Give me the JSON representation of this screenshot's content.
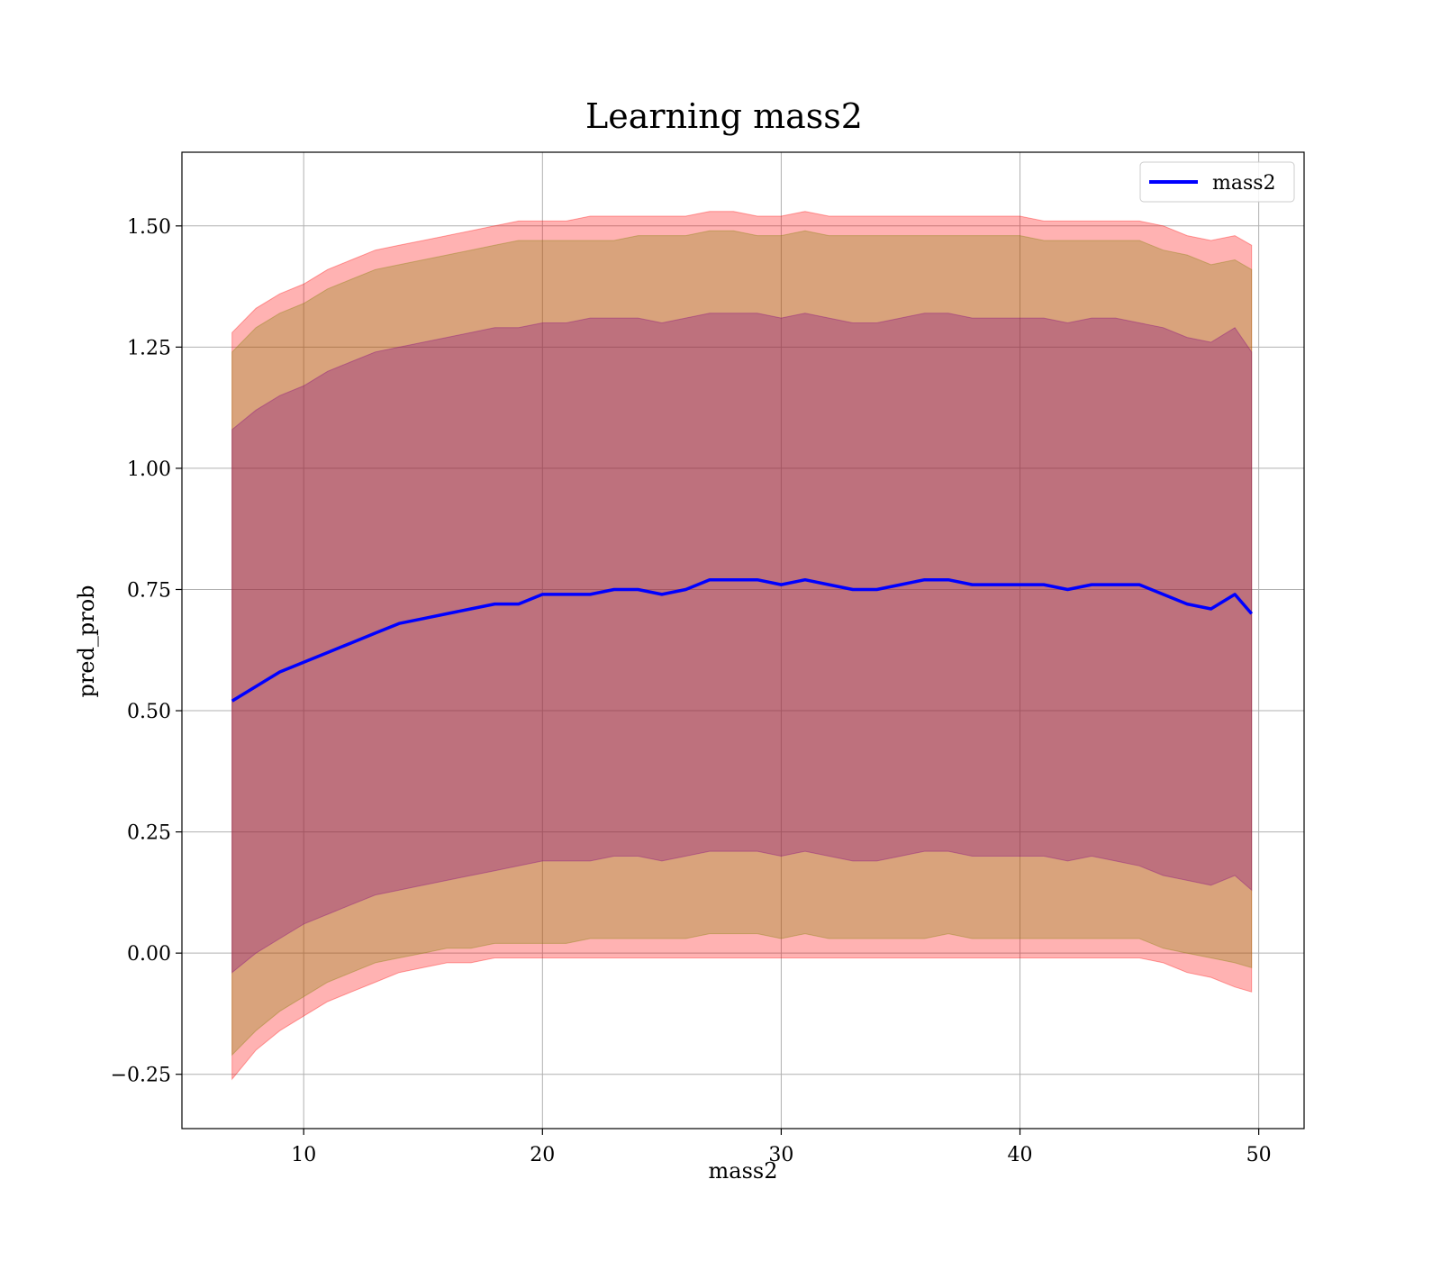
{
  "chart_data": {
    "type": "line",
    "title": "Learning mass2",
    "xlabel": "mass2",
    "ylabel": "pred_prob",
    "xlim": [
      4.9,
      51.9
    ],
    "ylim": [
      -0.362,
      1.652
    ],
    "x_ticks": [
      10,
      20,
      30,
      40,
      50
    ],
    "y_ticks": [
      -0.25,
      0.0,
      0.25,
      0.5,
      0.75,
      1.0,
      1.25,
      1.5
    ],
    "x_tick_labels": [
      "10",
      "20",
      "30",
      "40",
      "50"
    ],
    "y_tick_labels": [
      "−0.25",
      "0.00",
      "0.25",
      "0.50",
      "0.75",
      "1.00",
      "1.25",
      "1.50"
    ],
    "grid": true,
    "legend_position": "top-right",
    "x": [
      7,
      8,
      9,
      10,
      11,
      12,
      13,
      14,
      15,
      16,
      17,
      18,
      19,
      20,
      21,
      22,
      23,
      24,
      25,
      26,
      27,
      28,
      29,
      30,
      31,
      32,
      33,
      34,
      35,
      36,
      37,
      38,
      39,
      40,
      41,
      42,
      43,
      44,
      45,
      46,
      47,
      48,
      49,
      49.7
    ],
    "series": [
      {
        "name": "mass2",
        "color": "#0000ff",
        "values": [
          0.52,
          0.55,
          0.58,
          0.6,
          0.62,
          0.64,
          0.66,
          0.68,
          0.69,
          0.7,
          0.71,
          0.72,
          0.72,
          0.74,
          0.74,
          0.74,
          0.75,
          0.75,
          0.74,
          0.75,
          0.77,
          0.77,
          0.77,
          0.76,
          0.77,
          0.76,
          0.75,
          0.75,
          0.76,
          0.77,
          0.77,
          0.76,
          0.76,
          0.76,
          0.76,
          0.75,
          0.76,
          0.76,
          0.76,
          0.74,
          0.72,
          0.71,
          0.74,
          0.7
        ]
      }
    ],
    "bands": [
      {
        "color": "#ff0000",
        "opacity": 0.3,
        "lower": [
          -0.26,
          -0.2,
          -0.16,
          -0.13,
          -0.1,
          -0.08,
          -0.06,
          -0.04,
          -0.03,
          -0.02,
          -0.02,
          -0.01,
          -0.01,
          -0.01,
          -0.01,
          -0.01,
          -0.01,
          -0.01,
          -0.01,
          -0.01,
          -0.01,
          -0.01,
          -0.01,
          -0.01,
          -0.01,
          -0.01,
          -0.01,
          -0.01,
          -0.01,
          -0.01,
          -0.01,
          -0.01,
          -0.01,
          -0.01,
          -0.01,
          -0.01,
          -0.01,
          -0.01,
          -0.01,
          -0.02,
          -0.04,
          -0.05,
          -0.07,
          -0.08
        ],
        "upper": [
          1.28,
          1.33,
          1.36,
          1.38,
          1.41,
          1.43,
          1.45,
          1.46,
          1.47,
          1.48,
          1.49,
          1.5,
          1.51,
          1.51,
          1.51,
          1.52,
          1.52,
          1.52,
          1.52,
          1.52,
          1.53,
          1.53,
          1.52,
          1.52,
          1.53,
          1.52,
          1.52,
          1.52,
          1.52,
          1.52,
          1.52,
          1.52,
          1.52,
          1.52,
          1.51,
          1.51,
          1.51,
          1.51,
          1.51,
          1.5,
          1.48,
          1.47,
          1.48,
          1.46
        ]
      },
      {
        "color": "#808000",
        "opacity": 0.3,
        "lower": [
          -0.21,
          -0.16,
          -0.12,
          -0.09,
          -0.06,
          -0.04,
          -0.02,
          -0.01,
          0.0,
          0.01,
          0.01,
          0.02,
          0.02,
          0.02,
          0.02,
          0.03,
          0.03,
          0.03,
          0.03,
          0.03,
          0.04,
          0.04,
          0.04,
          0.03,
          0.04,
          0.03,
          0.03,
          0.03,
          0.03,
          0.03,
          0.04,
          0.03,
          0.03,
          0.03,
          0.03,
          0.03,
          0.03,
          0.03,
          0.03,
          0.01,
          0.0,
          -0.01,
          -0.02,
          -0.03
        ],
        "upper": [
          1.24,
          1.29,
          1.32,
          1.34,
          1.37,
          1.39,
          1.41,
          1.42,
          1.43,
          1.44,
          1.45,
          1.46,
          1.47,
          1.47,
          1.47,
          1.47,
          1.47,
          1.48,
          1.48,
          1.48,
          1.49,
          1.49,
          1.48,
          1.48,
          1.49,
          1.48,
          1.48,
          1.48,
          1.48,
          1.48,
          1.48,
          1.48,
          1.48,
          1.48,
          1.47,
          1.47,
          1.47,
          1.47,
          1.47,
          1.45,
          1.44,
          1.42,
          1.43,
          1.41
        ]
      },
      {
        "color": "#800080",
        "opacity": 0.3,
        "lower": [
          -0.04,
          0.0,
          0.03,
          0.06,
          0.08,
          0.1,
          0.12,
          0.13,
          0.14,
          0.15,
          0.16,
          0.17,
          0.18,
          0.19,
          0.19,
          0.19,
          0.2,
          0.2,
          0.19,
          0.2,
          0.21,
          0.21,
          0.21,
          0.2,
          0.21,
          0.2,
          0.19,
          0.19,
          0.2,
          0.21,
          0.21,
          0.2,
          0.2,
          0.2,
          0.2,
          0.19,
          0.2,
          0.19,
          0.18,
          0.16,
          0.15,
          0.14,
          0.16,
          0.13
        ],
        "upper": [
          1.08,
          1.12,
          1.15,
          1.17,
          1.2,
          1.22,
          1.24,
          1.25,
          1.26,
          1.27,
          1.28,
          1.29,
          1.29,
          1.3,
          1.3,
          1.31,
          1.31,
          1.31,
          1.3,
          1.31,
          1.32,
          1.32,
          1.32,
          1.31,
          1.32,
          1.31,
          1.3,
          1.3,
          1.31,
          1.32,
          1.32,
          1.31,
          1.31,
          1.31,
          1.31,
          1.3,
          1.31,
          1.31,
          1.3,
          1.29,
          1.27,
          1.26,
          1.29,
          1.24
        ]
      }
    ]
  }
}
